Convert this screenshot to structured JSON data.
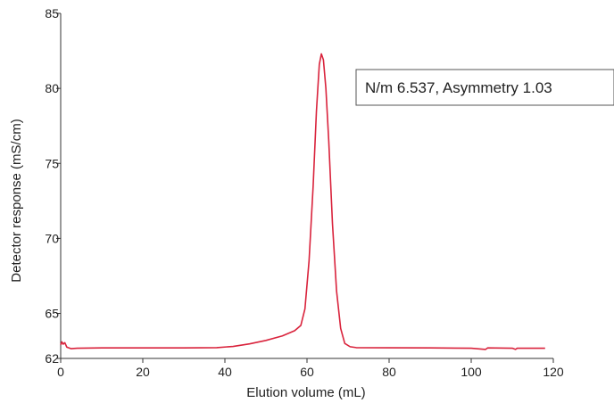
{
  "chart_data": {
    "type": "line",
    "title": "",
    "xlabel": "Elution volume (mL)",
    "ylabel": "Detector response (mS/cm)",
    "xlim": [
      0,
      120
    ],
    "ylim": [
      62,
      85
    ],
    "x_ticks": [
      0,
      20,
      40,
      60,
      80,
      100,
      120
    ],
    "y_ticks": [
      62,
      65,
      70,
      75,
      80,
      85
    ],
    "grid": false,
    "legend": "none",
    "annotation": "N/m 6.537, Asymmetry 1.03",
    "series": [
      {
        "color": "#d9233c",
        "points": [
          [
            0,
            62.9
          ],
          [
            0.3,
            63.1
          ],
          [
            0.6,
            62.95
          ],
          [
            1,
            63.05
          ],
          [
            1.5,
            62.75
          ],
          [
            2.5,
            62.65
          ],
          [
            4,
            62.68
          ],
          [
            10,
            62.7
          ],
          [
            20,
            62.7
          ],
          [
            30,
            62.7
          ],
          [
            38,
            62.72
          ],
          [
            42,
            62.8
          ],
          [
            46,
            62.97
          ],
          [
            50,
            63.2
          ],
          [
            54,
            63.5
          ],
          [
            57,
            63.85
          ],
          [
            58.5,
            64.2
          ],
          [
            59.5,
            65.3
          ],
          [
            60.5,
            68.5
          ],
          [
            61.5,
            73.5
          ],
          [
            62.3,
            78.5
          ],
          [
            63,
            81.6
          ],
          [
            63.5,
            82.3
          ],
          [
            64,
            81.9
          ],
          [
            64.6,
            80.0
          ],
          [
            65.3,
            76.5
          ],
          [
            66.2,
            71.0
          ],
          [
            67.2,
            66.5
          ],
          [
            68.2,
            64.0
          ],
          [
            69.2,
            63.0
          ],
          [
            70.5,
            62.78
          ],
          [
            72,
            62.72
          ],
          [
            80,
            62.71
          ],
          [
            90,
            62.7
          ],
          [
            100,
            62.68
          ],
          [
            103.5,
            62.6
          ],
          [
            104,
            62.7
          ],
          [
            110,
            62.68
          ],
          [
            110.8,
            62.6
          ],
          [
            111.2,
            62.68
          ],
          [
            118,
            62.68
          ]
        ]
      }
    ]
  }
}
